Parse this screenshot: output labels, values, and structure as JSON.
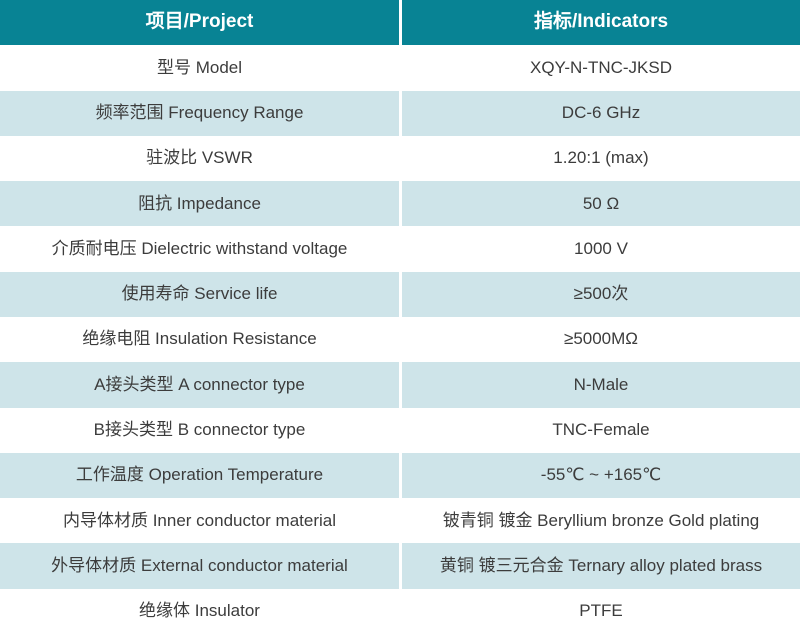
{
  "table": {
    "headers": [
      {
        "label": "项目/Project"
      },
      {
        "label": "指标/Indicators"
      }
    ],
    "rows": [
      {
        "project": "型号 Model",
        "indicator": "XQY-N-TNC-JKSD"
      },
      {
        "project": "频率范围 Frequency Range",
        "indicator": "DC-6 GHz"
      },
      {
        "project": "驻波比 VSWR",
        "indicator": "1.20:1 (max)"
      },
      {
        "project": "阻抗 Impedance",
        "indicator": "50 Ω"
      },
      {
        "project": "介质耐电压 Dielectric withstand voltage",
        "indicator": "1000 V"
      },
      {
        "project": "使用寿命 Service life",
        "indicator": "≥500次"
      },
      {
        "project": "绝缘电阻 Insulation Resistance",
        "indicator": "≥5000MΩ"
      },
      {
        "project": "A接头类型 A connector type",
        "indicator": "N-Male"
      },
      {
        "project": "B接头类型 B connector type",
        "indicator": "TNC-Female"
      },
      {
        "project": "工作温度 Operation Temperature",
        "indicator": "-55℃ ~ +165℃"
      },
      {
        "project": "内导体材质 Inner conductor material",
        "indicator": "铍青铜 镀金 Beryllium bronze Gold plating"
      },
      {
        "project": "外导体材质 External conductor material",
        "indicator": "黄铜 镀三元合金 Ternary alloy plated brass"
      },
      {
        "project": "绝缘体 Insulator",
        "indicator": "PTFE"
      }
    ],
    "colors": {
      "header_bg": "#088394",
      "header_text": "#ffffff",
      "row_bg": "#ffffff",
      "row_alt_bg": "#cee4e9",
      "text": "#3c3c3c",
      "divider": "#ffffff"
    }
  }
}
